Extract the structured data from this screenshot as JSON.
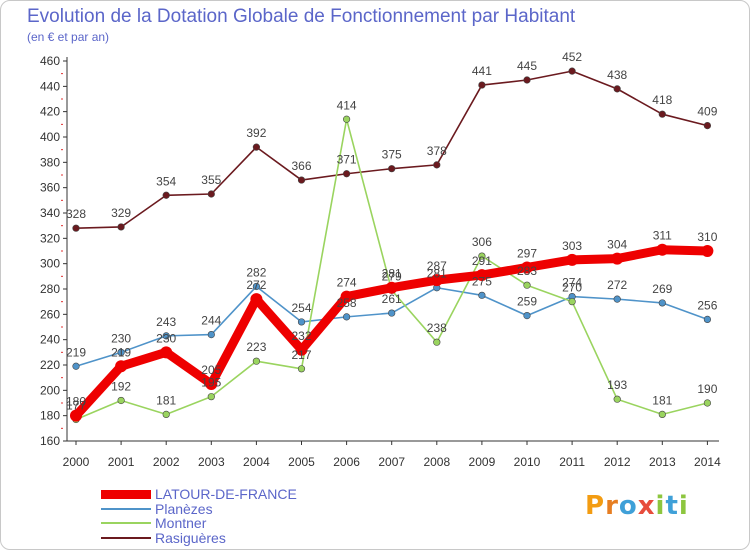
{
  "title": "Evolution de la Dotation Globale de Fonctionnement par Habitant",
  "subtitle": "(en € et par an)",
  "logo": "Proxiti",
  "chart_data": {
    "type": "line",
    "x": [
      "2000",
      "2001",
      "2002",
      "2003",
      "2004",
      "2005",
      "2006",
      "2007",
      "2008",
      "2009",
      "2010",
      "2011",
      "2012",
      "2013",
      "2014"
    ],
    "ylim": [
      160,
      460
    ],
    "yticks": [
      160,
      180,
      200,
      220,
      240,
      260,
      280,
      300,
      320,
      340,
      360,
      380,
      400,
      420,
      440,
      460
    ],
    "grid": false,
    "legend_position": "bottom-left",
    "series": [
      {
        "name": "Rasiguères",
        "color": "#6b1a1f",
        "values": [
          328,
          329,
          354,
          355,
          392,
          366,
          371,
          375,
          378,
          441,
          445,
          452,
          438,
          418,
          409
        ]
      },
      {
        "name": "Planèzes",
        "color": "#4f93c9",
        "values": [
          219,
          230,
          243,
          244,
          282,
          254,
          258,
          261,
          281,
          275,
          259,
          274,
          272,
          269,
          256
        ]
      },
      {
        "name": "Montner",
        "color": "#9ad45f",
        "values": [
          177,
          192,
          181,
          195,
          223,
          217,
          414,
          279,
          238,
          306,
          283,
          270,
          193,
          181,
          190
        ]
      },
      {
        "name": "LATOUR-DE-FRANCE",
        "color": "#ee0000",
        "values": [
          180,
          219,
          230,
          205,
          272,
          232,
          274,
          281,
          287,
          291,
          297,
          303,
          304,
          311,
          310
        ]
      }
    ],
    "data_labels": [
      {
        "series": 0,
        "labels": [
          "328",
          "329",
          "354",
          "355",
          "392",
          "366",
          "371",
          "375",
          "378",
          "441",
          "445",
          "452",
          "438",
          "418",
          "409"
        ]
      },
      {
        "series": 1,
        "labels": [
          "219",
          "230",
          "243",
          "244",
          "282",
          "254",
          "258",
          "261",
          "281",
          "275",
          "259",
          "274",
          "272",
          "269",
          "256"
        ]
      },
      {
        "series": 2,
        "labels": [
          "177",
          "192",
          "181",
          "195",
          "223",
          "217",
          "414",
          "279",
          "238",
          "306",
          "283",
          "270",
          "193",
          "181",
          "190"
        ]
      },
      {
        "series": 3,
        "labels": [
          "180",
          "219",
          "230",
          "205",
          "272",
          "232",
          "274",
          "281",
          "287",
          "291",
          "297",
          "303",
          "304",
          "311",
          "310"
        ]
      }
    ]
  },
  "legend": [
    {
      "label": "LATOUR-DE-FRANCE",
      "color": "#ee0000",
      "text_color": "#5b66c9",
      "bold": true
    },
    {
      "label": "Planèzes",
      "color": "#4f93c9",
      "text_color": "#5b66c9",
      "bold": false
    },
    {
      "label": "Montner",
      "color": "#9ad45f",
      "text_color": "#5b66c9",
      "bold": false
    },
    {
      "label": "Rasiguères",
      "color": "#6b1a1f",
      "text_color": "#5b66c9",
      "bold": false
    }
  ]
}
